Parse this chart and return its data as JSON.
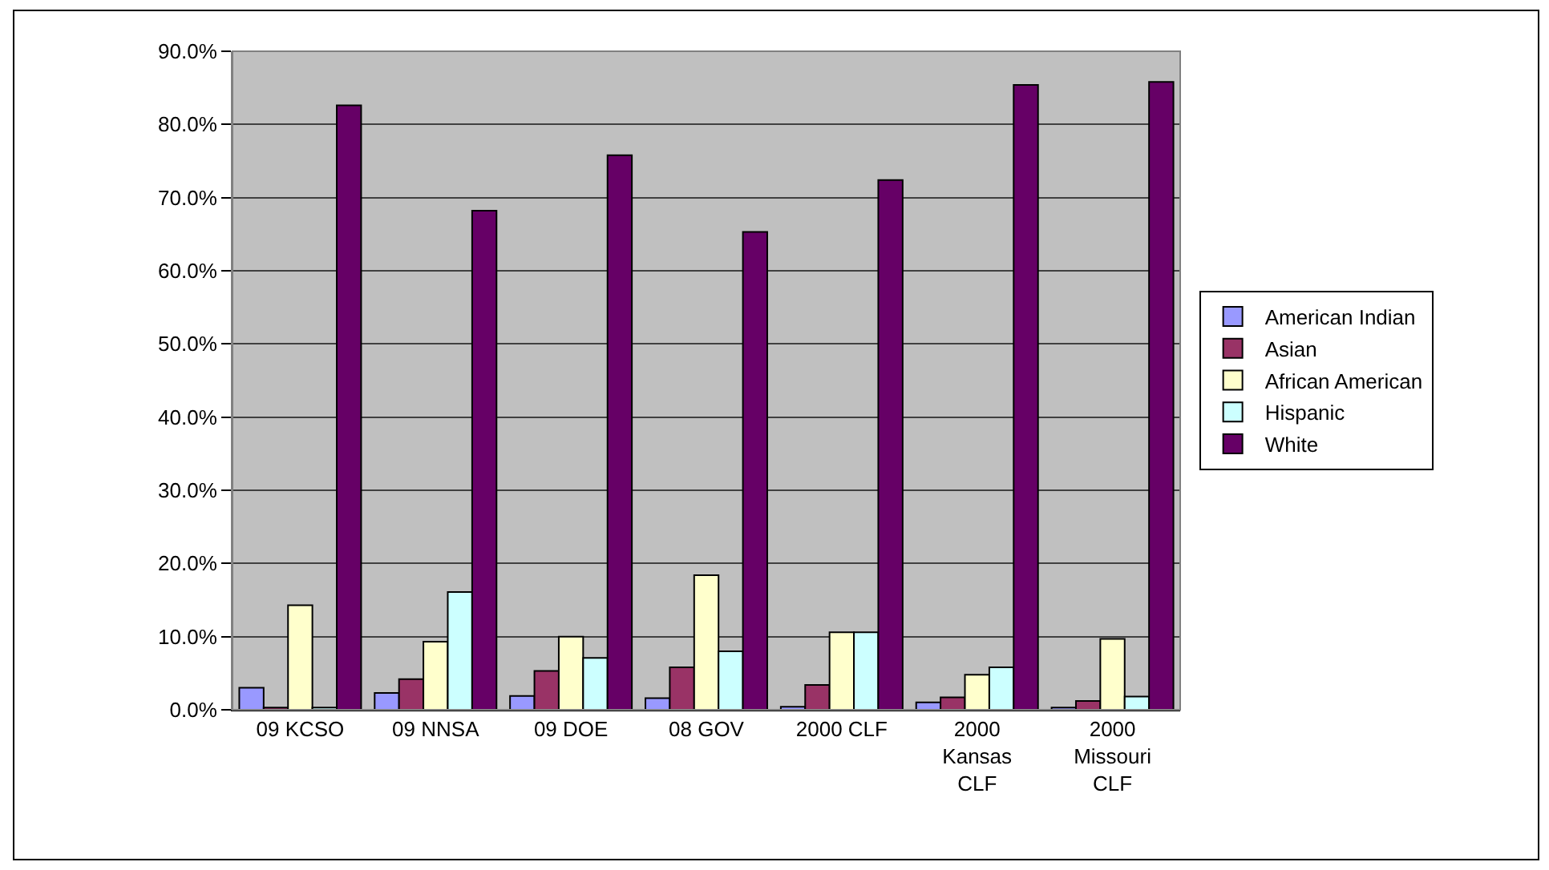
{
  "chart_data": {
    "type": "bar",
    "categories": [
      "09 KCSO",
      "09 NNSA",
      "09 DOE",
      "08 GOV",
      "2000 CLF",
      "2000 Kansas CLF",
      "2000 Missouri CLF"
    ],
    "series": [
      {
        "name": "American Indian",
        "color": "#9999ff",
        "values": [
          3.0,
          2.3,
          1.9,
          1.6,
          0.4,
          1.0,
          0.3
        ]
      },
      {
        "name": "Asian",
        "color": "#993366",
        "values": [
          0.3,
          4.2,
          5.3,
          5.8,
          3.4,
          1.7,
          1.2
        ]
      },
      {
        "name": "African American",
        "color": "#ffffcc",
        "values": [
          14.3,
          9.3,
          10.0,
          18.4,
          10.6,
          4.8,
          9.7
        ]
      },
      {
        "name": "Hispanic",
        "color": "#ccffff",
        "values": [
          0.3,
          16.1,
          7.1,
          8.0,
          10.6,
          5.8,
          1.8
        ]
      },
      {
        "name": "White",
        "color": "#660066",
        "values": [
          82.6,
          68.2,
          75.8,
          65.3,
          72.4,
          85.4,
          85.8
        ]
      }
    ],
    "ylim": [
      0,
      90
    ],
    "yticks": [
      {
        "value": 0,
        "label": "0.0%"
      },
      {
        "value": 10,
        "label": "10.0%"
      },
      {
        "value": 20,
        "label": "20.0%"
      },
      {
        "value": 30,
        "label": "30.0%"
      },
      {
        "value": 40,
        "label": "40.0%"
      },
      {
        "value": 50,
        "label": "50.0%"
      },
      {
        "value": 60,
        "label": "60.0%"
      },
      {
        "value": 70,
        "label": "70.0%"
      },
      {
        "value": 80,
        "label": "80.0%"
      },
      {
        "value": 90,
        "label": "90.0%"
      }
    ],
    "grid": "y",
    "legend": "right"
  }
}
